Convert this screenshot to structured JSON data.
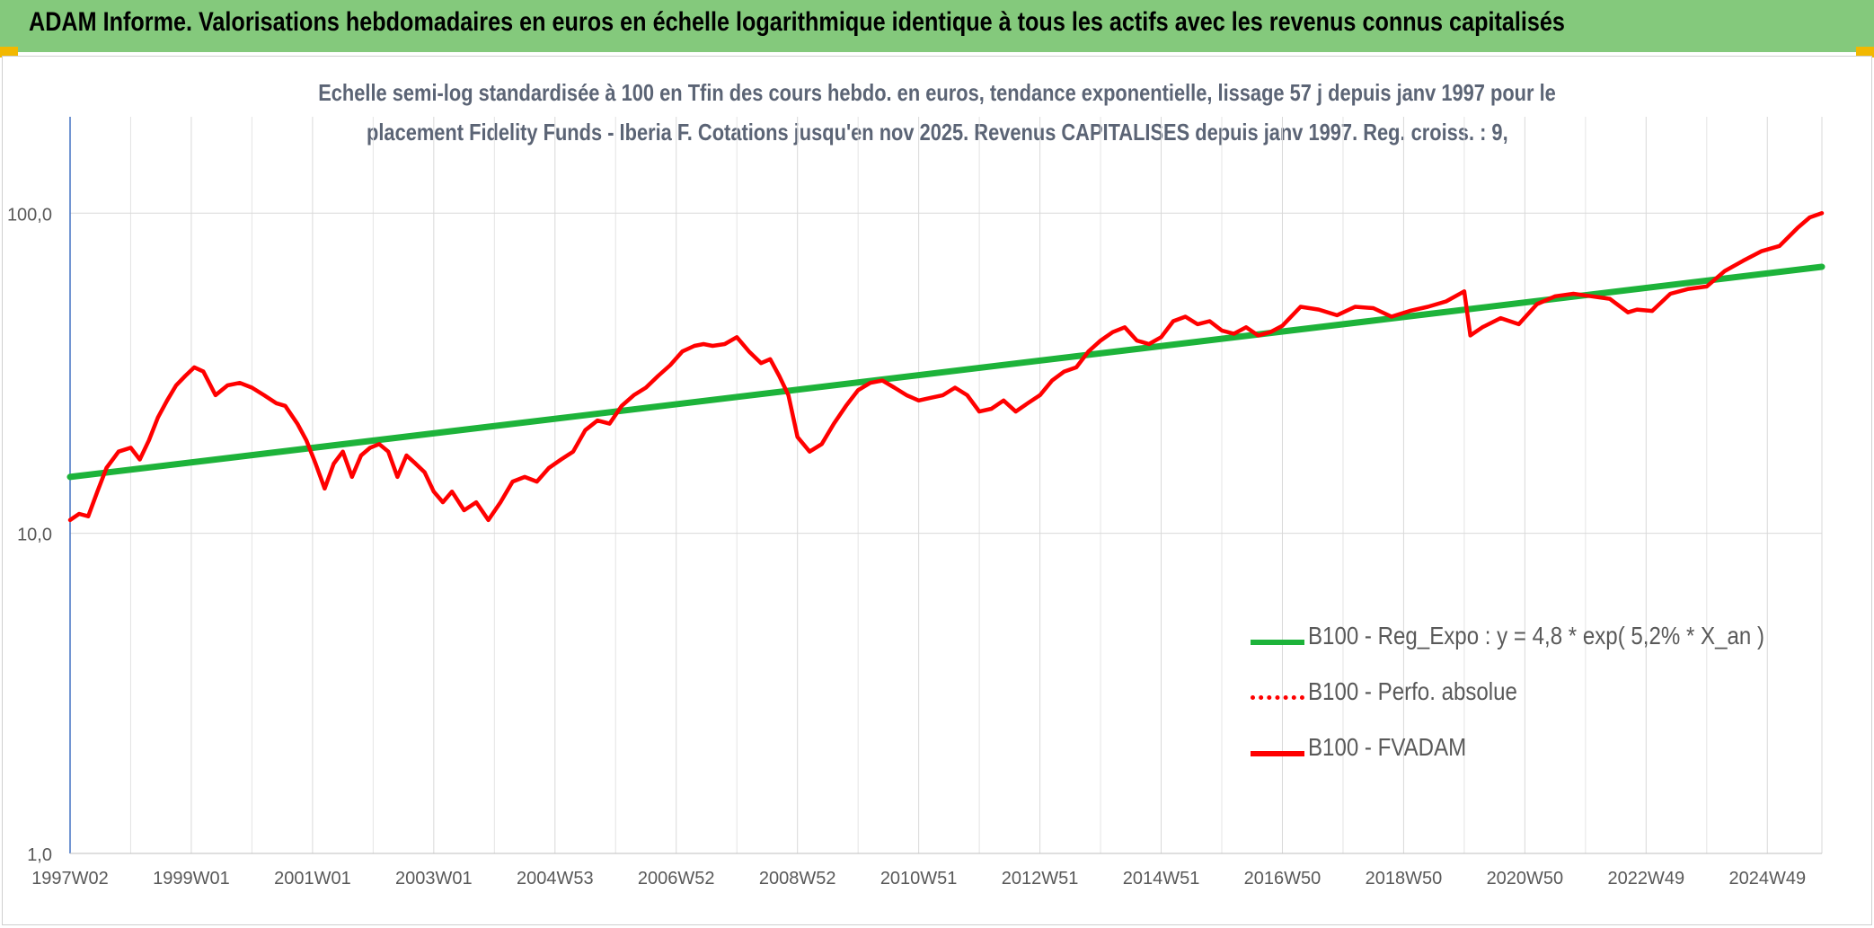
{
  "header": {
    "title": "ADAM Informe. Valorisations hebdomadaires en euros en échelle logarithmique identique à tous les actifs avec les revenus connus capitalisés"
  },
  "chart_data": {
    "type": "line",
    "title_line1": "Echelle semi-log standardisée à 100 en Tfin des cours hebdo. en euros, tendance exponentielle, lissage 57 j depuis janv 1997 pour le",
    "title_line2": "placement Fidelity Funds - Iberia F. Cotations jusqu'en nov 2025. Revenus CAPITALISES depuis janv 1997. Reg. croiss. : 9,",
    "y_scale": "log",
    "ylim": [
      1,
      200
    ],
    "y_ticks": [
      {
        "value": 1,
        "label": "1,0"
      },
      {
        "value": 10,
        "label": "10,0"
      },
      {
        "value": 100,
        "label": "100,0"
      }
    ],
    "xlim": [
      1997.0,
      2025.9
    ],
    "x_ticks": [
      {
        "value": 1997.0,
        "label": "1997W02"
      },
      {
        "value": 1999.0,
        "label": "1999W01"
      },
      {
        "value": 2001.0,
        "label": "2001W01"
      },
      {
        "value": 2003.0,
        "label": "2003W01"
      },
      {
        "value": 2005.0,
        "label": "2004W53"
      },
      {
        "value": 2007.0,
        "label": "2006W52"
      },
      {
        "value": 2009.0,
        "label": "2008W52"
      },
      {
        "value": 2011.0,
        "label": "2010W51"
      },
      {
        "value": 2013.0,
        "label": "2012W51"
      },
      {
        "value": 2015.0,
        "label": "2014W51"
      },
      {
        "value": 2017.0,
        "label": "2016W50"
      },
      {
        "value": 2019.0,
        "label": "2018W50"
      },
      {
        "value": 2021.0,
        "label": "2020W50"
      },
      {
        "value": 2023.0,
        "label": "2022W49"
      },
      {
        "value": 2025.0,
        "label": "2024W49"
      }
    ],
    "grid": true,
    "legend_position": "bottom-right",
    "series": [
      {
        "name": "B100 - Reg_Expo : y = 4,8 * exp( 5,2% *  X_an )",
        "color": "#1db33a",
        "style": "solid",
        "x": [
          1997.0,
          2025.9
        ],
        "values": [
          15.0,
          68.0
        ]
      },
      {
        "name": "B100 - Perfo. absolue",
        "color": "#ff0000",
        "style": "dotted",
        "x": [],
        "values": []
      },
      {
        "name": "B100 - FVADAM",
        "color": "#ff0000",
        "style": "solid",
        "x": [
          1997.0,
          1997.15,
          1997.3,
          1997.45,
          1997.6,
          1997.8,
          1998.0,
          1998.15,
          1998.3,
          1998.45,
          1998.6,
          1998.75,
          1998.9,
          1999.05,
          1999.2,
          1999.4,
          1999.6,
          1999.8,
          2000.0,
          2000.2,
          2000.4,
          2000.55,
          2000.75,
          2000.9,
          2001.05,
          2001.2,
          2001.35,
          2001.5,
          2001.65,
          2001.8,
          2001.95,
          2002.1,
          2002.25,
          2002.4,
          2002.55,
          2002.7,
          2002.85,
          2003.0,
          2003.15,
          2003.3,
          2003.5,
          2003.7,
          2003.9,
          2004.1,
          2004.3,
          2004.5,
          2004.7,
          2004.9,
          2005.1,
          2005.3,
          2005.5,
          2005.7,
          2005.9,
          2006.1,
          2006.3,
          2006.5,
          2006.7,
          2006.9,
          2007.1,
          2007.3,
          2007.45,
          2007.6,
          2007.8,
          2008.0,
          2008.2,
          2008.4,
          2008.55,
          2008.7,
          2008.85,
          2009.0,
          2009.2,
          2009.4,
          2009.6,
          2009.8,
          2010.0,
          2010.2,
          2010.4,
          2010.6,
          2010.8,
          2011.0,
          2011.2,
          2011.4,
          2011.6,
          2011.8,
          2012.0,
          2012.2,
          2012.4,
          2012.6,
          2012.8,
          2013.0,
          2013.2,
          2013.4,
          2013.6,
          2013.8,
          2014.0,
          2014.2,
          2014.4,
          2014.6,
          2014.8,
          2015.0,
          2015.2,
          2015.4,
          2015.6,
          2015.8,
          2016.0,
          2016.2,
          2016.4,
          2016.6,
          2016.8,
          2017.0,
          2017.3,
          2017.6,
          2017.9,
          2018.2,
          2018.5,
          2018.8,
          2019.1,
          2019.4,
          2019.7,
          2020.0,
          2020.1,
          2020.3,
          2020.6,
          2020.9,
          2021.2,
          2021.5,
          2021.8,
          2022.1,
          2022.4,
          2022.7,
          2022.85,
          2023.1,
          2023.4,
          2023.7,
          2024.0,
          2024.3,
          2024.6,
          2024.9,
          2025.2,
          2025.5,
          2025.7,
          2025.9
        ],
        "values": [
          11.0,
          11.5,
          11.3,
          13.5,
          16.0,
          18.0,
          18.5,
          17.0,
          19.5,
          23.0,
          26.0,
          29.0,
          31.0,
          33.0,
          32.0,
          27.0,
          29.0,
          29.5,
          28.5,
          27.0,
          25.5,
          25.0,
          22.0,
          19.5,
          16.5,
          13.8,
          16.5,
          18.0,
          15.0,
          17.5,
          18.5,
          19.0,
          18.0,
          15.0,
          17.5,
          16.5,
          15.5,
          13.5,
          12.5,
          13.5,
          11.8,
          12.5,
          11.0,
          12.5,
          14.5,
          15.0,
          14.5,
          16.0,
          17.0,
          18.0,
          21.0,
          22.5,
          22.0,
          25.0,
          27.0,
          28.5,
          31.0,
          33.5,
          37.0,
          38.5,
          39.0,
          38.5,
          39.0,
          41.0,
          37.0,
          34.0,
          35.0,
          31.0,
          27.0,
          20.0,
          18.0,
          19.0,
          22.0,
          25.0,
          28.0,
          29.5,
          30.0,
          28.5,
          27.0,
          26.0,
          26.5,
          27.0,
          28.5,
          27.0,
          24.0,
          24.5,
          26.0,
          24.0,
          25.5,
          27.0,
          30.0,
          32.0,
          33.0,
          37.0,
          40.0,
          42.5,
          44.0,
          40.0,
          39.0,
          41.0,
          46.0,
          47.5,
          45.0,
          46.0,
          43.0,
          42.0,
          44.0,
          41.5,
          42.5,
          44.5,
          51.0,
          50.0,
          48.0,
          51.0,
          50.5,
          47.5,
          49.5,
          51.0,
          53.0,
          57.0,
          41.5,
          44.0,
          47.0,
          45.0,
          52.0,
          55.0,
          56.0,
          55.0,
          54.0,
          49.0,
          50.0,
          49.5,
          56.0,
          58.0,
          59.0,
          66.0,
          71.0,
          76.0,
          79.0,
          90.0,
          97.0,
          100.0
        ]
      }
    ]
  }
}
